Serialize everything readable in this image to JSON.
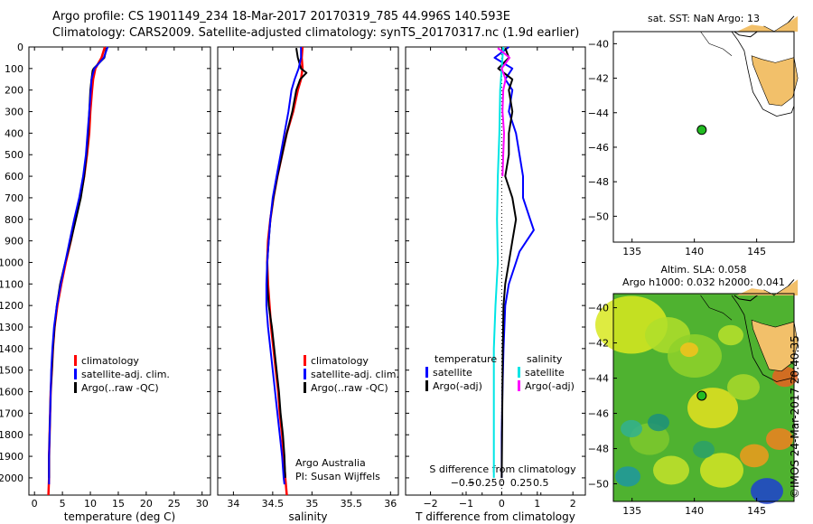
{
  "title_line1": "Argo profile: CS 1901149_234 18-Mar-2017 20170319_785 44.996S 140.593E",
  "title_line2": "Climatology: CARS2009. Satellite-adjusted climatology: synTS_20170317.nc (1.9d earlier)",
  "timestamp": "©IMOS 24-Mar-2017 20:40:35",
  "credit_line1": "Argo Australia",
  "credit_line2": "PI: Susan Wijffels",
  "colors": {
    "climatology": "#ff0000",
    "satellite": "#0000ff",
    "argo": "#000000",
    "s_satellite": "#00e5e5",
    "s_argo": "#ff00ff",
    "float_marker": "#22bb22"
  },
  "map_top": {
    "title": "sat. SST: NaN Argo: 13",
    "xlim": [
      133.5,
      148
    ],
    "ylim": [
      -51.5,
      -39.3
    ],
    "x_ticks": [
      135,
      140,
      145
    ],
    "y_ticks": [
      -40,
      -42,
      -44,
      -46,
      -48,
      -50
    ],
    "float_position": {
      "lon": 140.593,
      "lat": -44.996
    }
  },
  "map_bottom": {
    "title_line1": "Altim. SLA: 0.058",
    "title_line2": "Argo h1000: 0.032 h2000: 0.041",
    "xlim": [
      133.5,
      148
    ],
    "ylim": [
      -51,
      -39.2
    ],
    "x_ticks": [
      135,
      140,
      145
    ],
    "y_ticks": [
      -40,
      -42,
      -44,
      -46,
      -48,
      -50
    ],
    "float_position": {
      "lon": 140.593,
      "lat": -44.996
    }
  },
  "chart_data": [
    {
      "type": "line",
      "title": "temperature profile",
      "xlabel": "temperature (deg C)",
      "ylabel": "",
      "xlim": [
        -1,
        31.5
      ],
      "ylim": [
        2080,
        0
      ],
      "x_ticks": [
        0,
        5,
        10,
        15,
        20,
        25,
        30
      ],
      "y_ticks": [
        0,
        100,
        200,
        300,
        400,
        500,
        600,
        700,
        800,
        900,
        1000,
        1100,
        1200,
        1300,
        1400,
        1500,
        1600,
        1700,
        1800,
        1900,
        2000
      ],
      "legend": [
        "climatology",
        "satellite-adj. clim.",
        "Argo(..raw -QC)"
      ],
      "series": [
        {
          "name": "climatology",
          "color": "#ff0000",
          "depth": [
            0,
            50,
            100,
            150,
            200,
            300,
            400,
            500,
            600,
            700,
            800,
            900,
            1000,
            1100,
            1200,
            1300,
            1400,
            1500,
            1600,
            1700,
            1800,
            1900,
            2000,
            2080
          ],
          "values": [
            12.6,
            12.0,
            10.9,
            10.5,
            10.3,
            10.0,
            9.8,
            9.4,
            8.9,
            8.2,
            7.3,
            6.5,
            5.6,
            4.8,
            4.1,
            3.6,
            3.3,
            3.1,
            2.9,
            2.8,
            2.7,
            2.6,
            2.6,
            2.5
          ]
        },
        {
          "name": "satellite-adj. clim.",
          "color": "#0000ff",
          "depth": [
            0,
            50,
            100,
            150,
            200,
            300,
            400,
            500,
            600,
            700,
            800,
            900,
            1000,
            1100,
            1200,
            1300,
            1400,
            1500,
            1600,
            1700,
            1800,
            1900,
            2000,
            2030
          ],
          "values": [
            13.1,
            12.4,
            10.7,
            10.2,
            10.1,
            9.8,
            9.5,
            9.2,
            8.7,
            8.0,
            7.1,
            6.3,
            5.5,
            4.7,
            4.0,
            3.5,
            3.2,
            3.0,
            2.9,
            2.8,
            2.7,
            2.6,
            2.6,
            2.6
          ]
        },
        {
          "name": "Argo(..raw -QC)",
          "color": "#000000",
          "depth": [
            5,
            50,
            100,
            110,
            150,
            200,
            300,
            400,
            500,
            600,
            700,
            800,
            900,
            1000,
            1100,
            1200,
            1300,
            1400,
            1500,
            1600,
            1700,
            1800,
            1900,
            2000
          ],
          "values": [
            12.9,
            12.5,
            10.6,
            10.4,
            10.2,
            10.0,
            9.8,
            9.6,
            9.3,
            8.9,
            8.3,
            7.4,
            6.5,
            5.5,
            4.6,
            4.0,
            3.6,
            3.3,
            3.1,
            2.9,
            2.8,
            2.7,
            2.6,
            2.6
          ]
        }
      ]
    },
    {
      "type": "line",
      "title": "salinity profile",
      "xlabel": "salinity",
      "ylabel": "",
      "xlim": [
        33.8,
        36.1
      ],
      "ylim": [
        2080,
        0
      ],
      "x_ticks": [
        34,
        34.5,
        35,
        35.5,
        36
      ],
      "x_tick_labels": [
        "34",
        "34.5",
        "35",
        "35.5",
        "36"
      ],
      "legend": [
        "climatology",
        "satellite-adj. clim.",
        "Argo(..raw -QC)"
      ],
      "series": [
        {
          "name": "climatology",
          "color": "#ff0000",
          "depth": [
            0,
            50,
            100,
            150,
            200,
            300,
            400,
            500,
            600,
            700,
            800,
            900,
            1000,
            1100,
            1200,
            1300,
            1400,
            1500,
            1600,
            1700,
            1800,
            1900,
            2000,
            2080
          ],
          "values": [
            34.88,
            34.87,
            34.88,
            34.86,
            34.82,
            34.76,
            34.68,
            34.62,
            34.56,
            34.51,
            34.47,
            34.44,
            34.43,
            34.44,
            34.46,
            34.48,
            34.51,
            34.54,
            34.57,
            34.59,
            34.62,
            34.64,
            34.66,
            34.68
          ]
        },
        {
          "name": "satellite-adj. clim.",
          "color": "#0000ff",
          "depth": [
            0,
            50,
            100,
            150,
            200,
            300,
            400,
            500,
            600,
            700,
            800,
            900,
            1000,
            1100,
            1200,
            1300,
            1400,
            1500,
            1600,
            1700,
            1800,
            1900,
            2000,
            2030
          ],
          "values": [
            34.86,
            34.86,
            34.83,
            34.78,
            34.74,
            34.7,
            34.65,
            34.6,
            34.55,
            34.5,
            34.47,
            34.45,
            34.43,
            34.42,
            34.42,
            34.44,
            34.47,
            34.5,
            34.53,
            34.56,
            34.59,
            34.62,
            34.64,
            34.65
          ]
        },
        {
          "name": "Argo(..raw -QC)",
          "color": "#000000",
          "depth": [
            5,
            50,
            100,
            120,
            150,
            200,
            300,
            400,
            500,
            600,
            700,
            800,
            900,
            1000,
            1100,
            1200,
            1300,
            1400,
            1500,
            1600,
            1700,
            1800,
            1900,
            2000
          ],
          "values": [
            34.8,
            34.82,
            34.86,
            34.93,
            34.85,
            34.8,
            34.75,
            34.68,
            34.62,
            34.56,
            34.51,
            34.47,
            34.45,
            34.43,
            34.43,
            34.45,
            34.49,
            34.52,
            34.55,
            34.58,
            34.6,
            34.63,
            34.65,
            34.66
          ]
        }
      ]
    },
    {
      "type": "line",
      "title": "difference from climatology",
      "xlabel": "T difference from climatology",
      "xlabel_top": "S difference from climatology",
      "xlim": [
        -2.7,
        2.35
      ],
      "ylim": [
        2080,
        0
      ],
      "x_ticks": [
        -2,
        -1,
        0,
        1,
        2
      ],
      "s_x_ticks": [
        -0.5,
        -0.25,
        0,
        0.25,
        0.5
      ],
      "s_x_tick_labels": [
        "−0.5",
        "−0.25",
        "0",
        "0.25",
        "0.5"
      ],
      "legend_headers": [
        "temperature",
        "salinity"
      ],
      "legend_temperature": [
        "satellite",
        "Argo(-adj)"
      ],
      "legend_salinity": [
        "satellite",
        "Argo(-adj)"
      ],
      "series": [
        {
          "name": "T satellite",
          "color": "#0000ff",
          "depth": [
            0,
            50,
            100,
            150,
            200,
            300,
            400,
            500,
            600,
            700,
            800,
            850,
            900,
            950,
            1000,
            1100,
            1200,
            1400,
            1600,
            1800,
            2000
          ],
          "values": [
            0.2,
            -0.2,
            0.3,
            0.1,
            0.3,
            0.2,
            0.4,
            0.5,
            0.6,
            0.6,
            0.8,
            0.9,
            0.7,
            0.5,
            0.4,
            0.2,
            0.1,
            0.05,
            0.02,
            0.0,
            0.0
          ]
        },
        {
          "name": "T Argo(-adj)",
          "color": "#000000",
          "depth": [
            5,
            50,
            100,
            150,
            200,
            300,
            400,
            500,
            600,
            700,
            800,
            900,
            1000,
            1100,
            1200,
            1400,
            1600,
            1800,
            2000
          ],
          "values": [
            0.1,
            0.2,
            -0.1,
            0.3,
            0.2,
            0.3,
            0.2,
            0.2,
            0.1,
            0.3,
            0.4,
            0.3,
            0.2,
            0.1,
            0.05,
            0.03,
            0.02,
            0.01,
            0.0
          ]
        },
        {
          "name": "S satellite",
          "color": "#00e5e5",
          "depth": [
            0,
            100,
            200,
            400,
            600,
            800,
            1000,
            1200,
            1400,
            1600,
            1800,
            2000
          ],
          "values": [
            0.02,
            0.0,
            -0.02,
            -0.03,
            -0.05,
            -0.06,
            -0.05,
            -0.08,
            -0.1,
            -0.1,
            -0.1,
            -0.1
          ]
        },
        {
          "name": "S Argo(-adj)",
          "color": "#ff00ff",
          "depth": [
            5,
            50,
            100,
            150,
            200,
            300,
            400,
            500,
            600
          ],
          "values": [
            -0.05,
            0.1,
            0.0,
            0.05,
            0.02,
            0.01,
            0.03,
            0.02,
            0.01
          ]
        }
      ]
    }
  ]
}
